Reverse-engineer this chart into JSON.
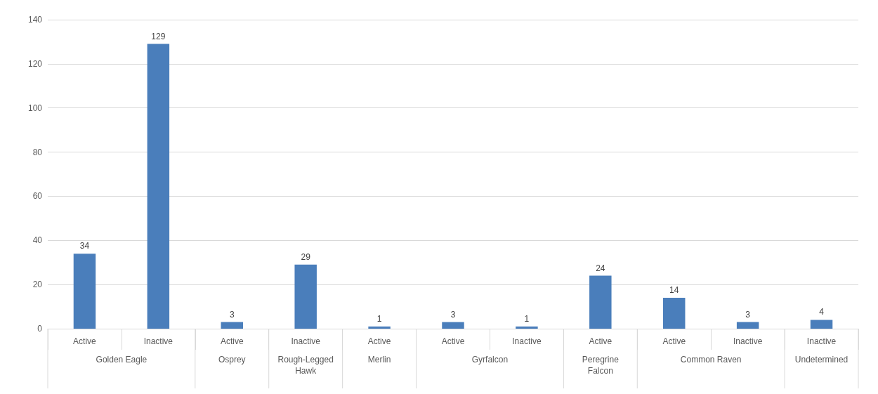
{
  "chart_data": {
    "type": "bar",
    "categories": [
      "Active",
      "Inactive",
      "Active",
      "Inactive",
      "Active",
      "Active",
      "Inactive",
      "Active",
      "Active",
      "Inactive",
      "Inactive"
    ],
    "values": [
      34,
      129,
      3,
      29,
      1,
      3,
      1,
      24,
      14,
      3,
      4
    ],
    "color": "#4a7ebb",
    "data_labels": true,
    "ylim": [
      0,
      140
    ],
    "yticks": [
      0,
      20,
      40,
      60,
      80,
      100,
      120,
      140
    ],
    "grid": "y",
    "annotations": [
      "Golden Eagle",
      "Osprey",
      "Rough-Legged\nHawk",
      "Merlin",
      "Gyrfalcon",
      "Peregrine\nFalcon",
      "Common Raven",
      "Undetermined"
    ]
  }
}
